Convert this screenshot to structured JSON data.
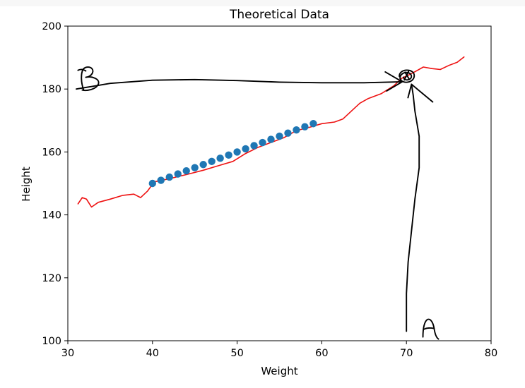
{
  "chart_data": {
    "type": "scatter",
    "title": "Theoretical Data",
    "xlabel": "Weight",
    "ylabel": "Height",
    "xlim": [
      30,
      80
    ],
    "ylim": [
      100,
      200
    ],
    "xticks": [
      "30",
      "40",
      "50",
      "60",
      "70",
      "80"
    ],
    "yticks": [
      "100",
      "120",
      "140",
      "160",
      "180",
      "200"
    ],
    "grid": false,
    "scatter_color": "#1f77b4",
    "points": {
      "x": [
        40,
        41,
        42,
        43,
        44,
        45,
        46,
        47,
        48,
        49,
        50,
        51,
        52,
        53,
        54,
        55,
        56,
        57,
        58,
        59
      ],
      "y": [
        150,
        151,
        152,
        153,
        154,
        155,
        156,
        157,
        158,
        159,
        160,
        161,
        162,
        163,
        164,
        165,
        166,
        167,
        168,
        169
      ]
    },
    "hand_drawn_line": {
      "color": "#ee1111",
      "x": [
        31.2,
        31.7,
        32.2,
        32.8,
        33.6,
        35.0,
        36.5,
        37.8,
        38.6,
        39.4,
        40.2,
        42.0,
        44.0,
        46.0,
        48.0,
        49.5,
        51.0,
        52.5,
        54.0,
        55.5,
        57.0,
        58.5,
        60.0,
        61.5,
        62.5,
        63.5,
        64.5,
        65.5,
        67.0,
        68.5,
        69.5,
        70.3,
        71.0,
        72.0,
        73.0,
        74.0,
        75.0,
        76.0,
        76.8
      ],
      "y": [
        143.5,
        145.5,
        145,
        142.5,
        144,
        145,
        146.2,
        146.6,
        145.5,
        147.5,
        150.5,
        151.5,
        152.8,
        154.2,
        155.8,
        157,
        159.5,
        161.5,
        163,
        164.5,
        166.8,
        167.8,
        169,
        169.5,
        170.5,
        173,
        175.5,
        177,
        178.5,
        181,
        183.5,
        184.5,
        185.5,
        187,
        186.5,
        186.2,
        187.5,
        188.5,
        190.2
      ]
    },
    "annotations": {
      "color": "#000000",
      "arrow_b": {
        "x": [
          31.0,
          35.0,
          40.0,
          45.0,
          50.0,
          55.0,
          60.0,
          65.0,
          69.5
        ],
        "y": [
          180,
          181.8,
          182.8,
          183.0,
          182.7,
          182.2,
          182.0,
          182.0,
          182.3
        ]
      },
      "arrow_a": {
        "x": [
          70.0,
          70.0,
          70.2,
          70.6,
          71.0,
          71.5,
          71.5,
          71.0,
          70.8,
          70.6
        ],
        "y": [
          103,
          115,
          125,
          135,
          145,
          155,
          165,
          173,
          178,
          181.5
        ]
      },
      "target_point": {
        "x": 70.0,
        "y": 184.0
      }
    }
  }
}
